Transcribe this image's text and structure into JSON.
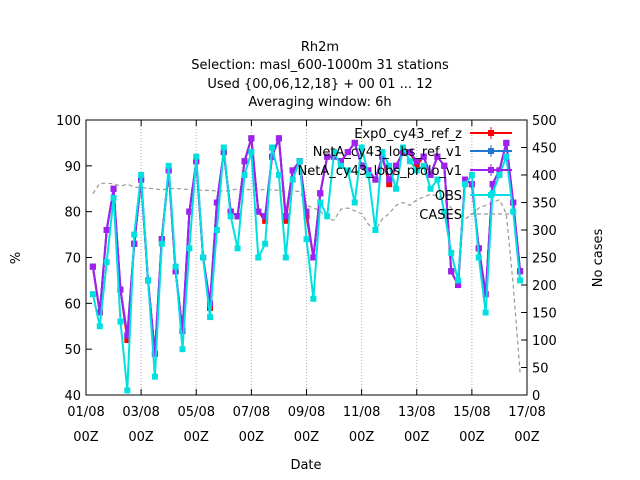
{
  "title_lines": [
    "Rh2m",
    "Selection: masl_600-1000m     31 stations",
    "Used {00,06,12,18} + 00 01 ... 12",
    "Averaging window:  6h"
  ],
  "chart_data": {
    "type": "line",
    "xlabel": "Date",
    "ylabel": "%",
    "y2label": "No cases",
    "ylim": [
      40,
      100
    ],
    "y2lim": [
      0,
      500
    ],
    "yticks": [
      40,
      50,
      60,
      70,
      80,
      90,
      100
    ],
    "y2ticks": [
      0,
      50,
      100,
      150,
      200,
      250,
      300,
      350,
      400,
      450,
      500
    ],
    "xlim": [
      0,
      64
    ],
    "xticks": [
      {
        "pos": 0,
        "l1": "01/08",
        "l2": "00Z"
      },
      {
        "pos": 8,
        "l1": "03/08",
        "l2": "00Z"
      },
      {
        "pos": 16,
        "l1": "05/08",
        "l2": "00Z"
      },
      {
        "pos": 24,
        "l1": "07/08",
        "l2": "00Z"
      },
      {
        "pos": 32,
        "l1": "09/08",
        "l2": "00Z"
      },
      {
        "pos": 40,
        "l1": "11/08",
        "l2": "00Z"
      },
      {
        "pos": 48,
        "l1": "13/08",
        "l2": "00Z"
      },
      {
        "pos": 56,
        "l1": "15/08",
        "l2": "00Z"
      },
      {
        "pos": 64,
        "l1": "17/08",
        "l2": "00Z"
      }
    ],
    "x": [
      1,
      2,
      3,
      4,
      5,
      6,
      7,
      8,
      9,
      10,
      11,
      12,
      13,
      14,
      15,
      16,
      17,
      18,
      19,
      20,
      21,
      22,
      23,
      24,
      25,
      26,
      27,
      28,
      29,
      30,
      31,
      32,
      33,
      34,
      35,
      36,
      37,
      38,
      39,
      40,
      41,
      42,
      43,
      44,
      45,
      46,
      47,
      48,
      49,
      50,
      51,
      52,
      53,
      54,
      55,
      56,
      57,
      58,
      59,
      60,
      61,
      62,
      63
    ],
    "series": [
      {
        "name": "Exp0_cy43_ref_z",
        "color": "#ff0000",
        "marker": "square",
        "values": [
          68,
          58,
          76,
          85,
          63,
          52,
          73,
          87,
          65,
          49,
          74,
          89,
          67,
          54,
          80,
          91,
          70,
          59,
          82,
          93,
          80,
          79,
          91,
          96,
          80,
          78,
          92,
          96,
          78,
          89,
          91,
          79,
          70,
          84,
          92,
          92,
          91,
          93,
          95,
          90,
          89,
          87,
          92,
          86,
          90,
          93,
          93,
          90,
          92,
          88,
          92,
          90,
          67,
          64,
          87,
          86,
          72,
          62,
          86,
          89,
          95,
          82,
          67
        ]
      },
      {
        "name": "NetA_cy43_lobs_ref_v1",
        "color": "#1f77d4",
        "marker": "square",
        "values": [
          68,
          58,
          76,
          85,
          63,
          53,
          73,
          87,
          65,
          49,
          74,
          89,
          67,
          54,
          80,
          91,
          70,
          60,
          82,
          93,
          80,
          79,
          91,
          96,
          80,
          79,
          92,
          96,
          79,
          89,
          91,
          80,
          70,
          84,
          92,
          92,
          91,
          93,
          95,
          90,
          89,
          87,
          92,
          87,
          90,
          93,
          93,
          91,
          92,
          88,
          92,
          90,
          67,
          64,
          87,
          86,
          72,
          62,
          86,
          89,
          95,
          82,
          67
        ]
      },
      {
        "name": "NetA_cy43_lobs_prolo_v1",
        "color": "#a020f0",
        "marker": "square",
        "values": [
          68,
          58,
          76,
          85,
          63,
          53,
          73,
          87,
          65,
          49,
          74,
          89,
          67,
          54,
          80,
          91,
          70,
          60,
          82,
          93,
          80,
          79,
          91,
          96,
          80,
          79,
          92,
          96,
          79,
          89,
          91,
          80,
          70,
          84,
          92,
          92,
          91,
          93,
          95,
          90,
          89,
          87,
          92,
          87,
          90,
          93,
          93,
          91,
          92,
          88,
          92,
          90,
          67,
          64,
          87,
          86,
          72,
          62,
          86,
          89,
          95,
          82,
          67
        ]
      },
      {
        "name": "OBS",
        "color": "#00e0e0",
        "marker": "circle",
        "values": [
          62,
          55,
          69,
          83,
          56,
          41,
          75,
          88,
          65,
          44,
          73,
          90,
          68,
          50,
          72,
          92,
          70,
          57,
          76,
          94,
          79,
          72,
          88,
          93,
          70,
          73,
          94,
          88,
          70,
          87,
          91,
          74,
          61,
          82,
          79,
          93,
          90,
          89,
          82,
          94,
          88,
          76,
          93,
          90,
          85,
          94,
          91,
          89,
          90,
          85,
          87,
          80,
          71,
          65,
          86,
          88,
          70,
          58,
          84,
          88,
          92,
          80,
          65
        ]
      },
      {
        "name": "CASES",
        "color": "#999999",
        "marker": "none",
        "axis": "y2",
        "values": [
          366,
          385,
          385,
          384,
          380,
          383,
          378,
          377,
          376,
          375,
          373,
          375,
          376,
          374,
          374,
          373,
          372,
          372,
          371,
          371,
          372,
          375,
          374,
          373,
          372,
          374,
          373,
          372,
          370,
          371,
          370,
          345,
          340,
          335,
          320,
          318,
          338,
          340,
          335,
          330,
          310,
          300,
          320,
          330,
          345,
          350,
          345,
          355,
          360,
          365,
          362,
          355,
          340,
          330,
          320,
          328,
          340,
          345,
          350,
          355,
          330,
          200,
          40
        ]
      }
    ]
  }
}
